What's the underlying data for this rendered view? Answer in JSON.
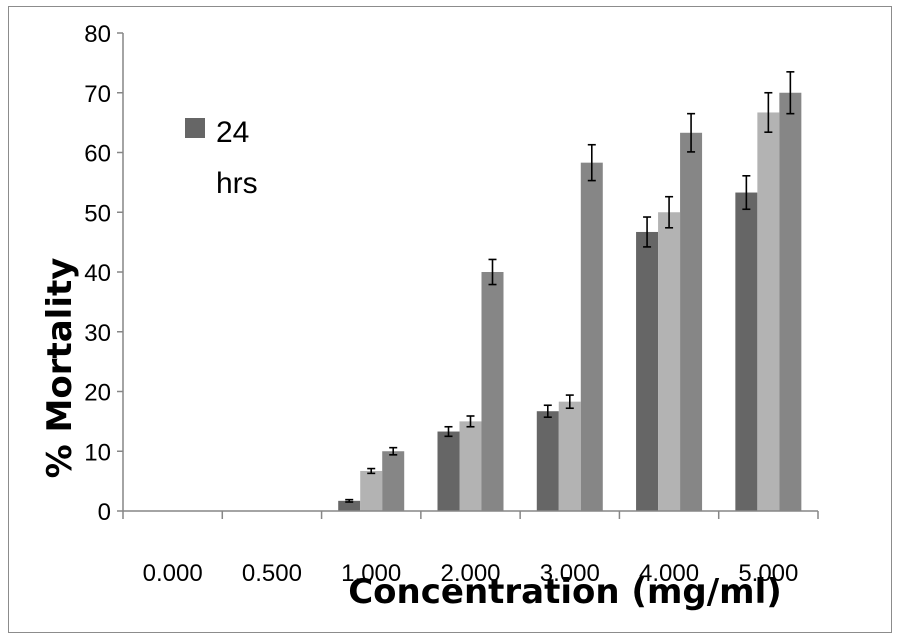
{
  "chart_data": {
    "type": "bar",
    "title": "",
    "xlabel": "Concentration (mg/ml)",
    "ylabel": "% Mortality",
    "ylim": [
      0,
      80
    ],
    "yticks": [
      0,
      10,
      20,
      30,
      40,
      50,
      60,
      70,
      80
    ],
    "grid": false,
    "legend_position": "top-left",
    "categories": [
      "0.000",
      "0.500",
      "1.000",
      "2.000",
      "3.000",
      "4.000",
      "5.000"
    ],
    "series": [
      {
        "name": "24 hrs",
        "color": "#666666",
        "values": [
          0,
          0,
          1.7,
          13.3,
          16.7,
          46.7,
          53.3
        ],
        "errors": [
          0,
          0,
          0.2,
          0.8,
          1.0,
          2.5,
          2.8
        ]
      },
      {
        "color": "#b3b3b3",
        "values": [
          0,
          0,
          6.7,
          15.0,
          18.3,
          50.0,
          66.7
        ],
        "errors": [
          0,
          0,
          0.4,
          0.9,
          1.1,
          2.6,
          3.3
        ]
      },
      {
        "color": "#868686",
        "values": [
          0,
          0,
          10.0,
          40.0,
          58.3,
          63.3,
          70.0
        ],
        "errors": [
          0,
          0,
          0.6,
          2.1,
          3.0,
          3.2,
          3.5
        ]
      }
    ]
  }
}
